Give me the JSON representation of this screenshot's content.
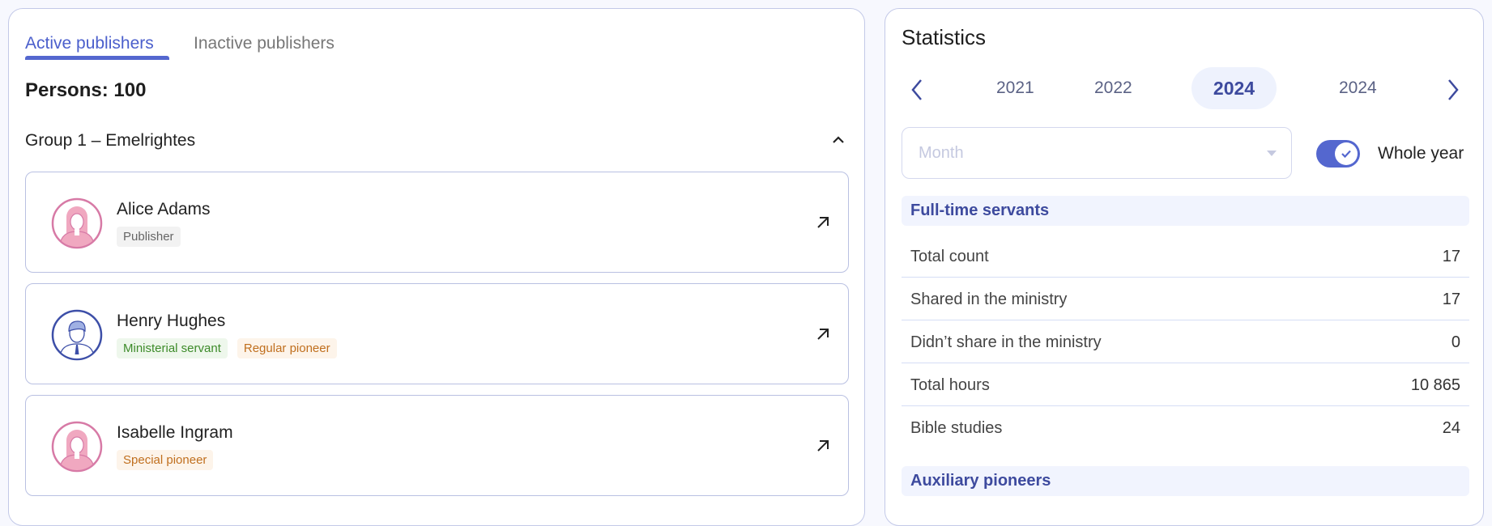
{
  "tabs": [
    {
      "label": "Active publishers",
      "active": true
    },
    {
      "label": "Inactive publishers",
      "active": false
    }
  ],
  "persons_label": "Persons: 100",
  "group": {
    "title": "Group 1 –  Emelrightes",
    "expanded": true
  },
  "publishers": [
    {
      "name": "Alice Adams",
      "avatar": "female-avatar-icon",
      "tags": [
        {
          "label": "Publisher",
          "color": "gray"
        }
      ]
    },
    {
      "name": "Henry Hughes",
      "avatar": "male-avatar-icon",
      "tags": [
        {
          "label": "Ministerial servant",
          "color": "green"
        },
        {
          "label": "Regular pioneer",
          "color": "orange"
        }
      ]
    },
    {
      "name": "Isabelle Ingram",
      "avatar": "female-avatar-icon",
      "tags": [
        {
          "label": "Special pioneer",
          "color": "orange"
        }
      ]
    }
  ],
  "statistics": {
    "title": "Statistics",
    "years": [
      "2021",
      "2022",
      "2024",
      "2024"
    ],
    "selected_year": "2024",
    "month_placeholder": "Month",
    "whole_year_label": "Whole year",
    "whole_year_on": true,
    "sections": [
      {
        "title": "Full-time servants",
        "rows": [
          {
            "label": "Total count",
            "value": "17"
          },
          {
            "label": "Shared in the ministry",
            "value": "17"
          },
          {
            "label": "Didn’t share in the ministry",
            "value": "0"
          },
          {
            "label": "Total hours",
            "value": "10 865"
          },
          {
            "label": "Bible studies",
            "value": "24"
          }
        ]
      },
      {
        "title": "Auxiliary pioneers"
      }
    ]
  },
  "colors": {
    "accent": "#5467cf",
    "section_text": "#3d4a9e",
    "female_avatar": "#d77aa6",
    "male_avatar": "#3d4fa8"
  }
}
